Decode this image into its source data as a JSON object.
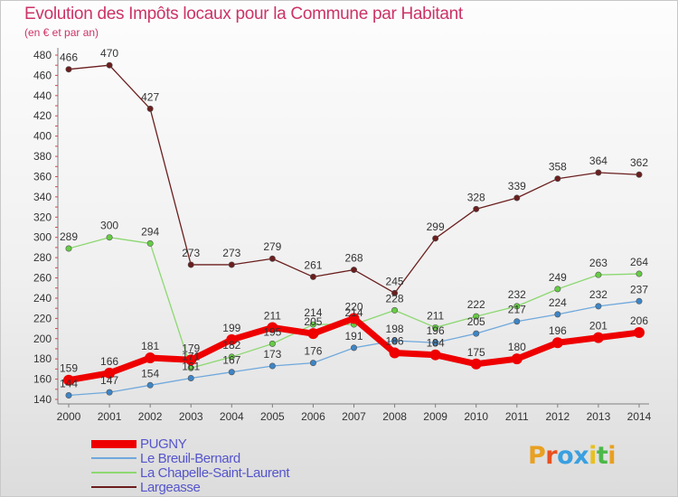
{
  "title": "Evolution des Impôts locaux pour la Commune par Habitant",
  "subtitle": "(en € et par an)",
  "brand": {
    "letters": [
      "P",
      "r",
      "o",
      "x",
      "i",
      "t",
      "i"
    ],
    "colors": [
      "#e8a020",
      "#e85020",
      "#3aa0e0",
      "#3aa0e0",
      "#e8c020",
      "#4cb848",
      "#e8a020"
    ]
  },
  "chart_data": {
    "type": "line",
    "x": [
      "2000",
      "2001",
      "2002",
      "2003",
      "2004",
      "2005",
      "2006",
      "2007",
      "2008",
      "2009",
      "2010",
      "2011",
      "2012",
      "2013",
      "2014"
    ],
    "ylim": [
      140,
      480
    ],
    "yticks": [
      140,
      160,
      180,
      200,
      220,
      240,
      260,
      280,
      300,
      320,
      340,
      360,
      380,
      400,
      420,
      440,
      460,
      480
    ],
    "grid": false,
    "legend_position": "bottom-left",
    "series": [
      {
        "name": "Largeasse",
        "color": "#6b1e1e",
        "marker": "#6b1e1e",
        "width": 1.3,
        "values": [
          466,
          470,
          427,
          273,
          273,
          279,
          261,
          268,
          245,
          299,
          328,
          339,
          358,
          364,
          362
        ],
        "labels": [
          "466",
          "470",
          "427",
          "273",
          "273",
          "279",
          "261",
          "268",
          "245",
          "299",
          "328",
          "339",
          "358",
          "364",
          "362"
        ]
      },
      {
        "name": "La Chapelle-Saint-Laurent",
        "color": "#8cd870",
        "marker": "#66cc44",
        "width": 1.3,
        "values": [
          289,
          300,
          294,
          171,
          182,
          195,
          214,
          214,
          228,
          211,
          222,
          232,
          249,
          263,
          264
        ],
        "labels": [
          "289",
          "300",
          "294",
          "171",
          "182",
          "195",
          "214",
          "214",
          "228",
          "211",
          "222",
          "232",
          "249",
          "263",
          "264"
        ]
      },
      {
        "name": "Le Breuil-Bernard",
        "color": "#6fa8dc",
        "marker": "#3d85c6",
        "width": 1.3,
        "values": [
          144,
          147,
          154,
          161,
          167,
          173,
          176,
          191,
          198,
          196,
          205,
          217,
          224,
          232,
          237
        ],
        "labels": [
          "144",
          "147",
          "154",
          "161",
          "167",
          "173",
          "176",
          "191",
          "198",
          "196",
          "205",
          "217",
          "224",
          "232",
          "237"
        ]
      },
      {
        "name": "PUGNY",
        "color": "#ee0000",
        "marker": "#ee0000",
        "width": 7,
        "values": [
          159,
          166,
          181,
          179,
          199,
          211,
          205,
          220,
          186,
          184,
          175,
          180,
          196,
          201,
          206
        ],
        "labels": [
          "159",
          "166",
          "181",
          "179",
          "199",
          "211",
          "205",
          "220",
          "186",
          "184",
          "175",
          "180",
          "196",
          "201",
          "206"
        ]
      }
    ],
    "legend": [
      {
        "name": "PUGNY",
        "color": "#ee0000",
        "width": 9
      },
      {
        "name": "Le Breuil-Bernard",
        "color": "#6fa8dc",
        "width": 2
      },
      {
        "name": "La Chapelle-Saint-Laurent",
        "color": "#8cd870",
        "width": 2
      },
      {
        "name": "Largeasse",
        "color": "#6b1e1e",
        "width": 2
      }
    ]
  }
}
